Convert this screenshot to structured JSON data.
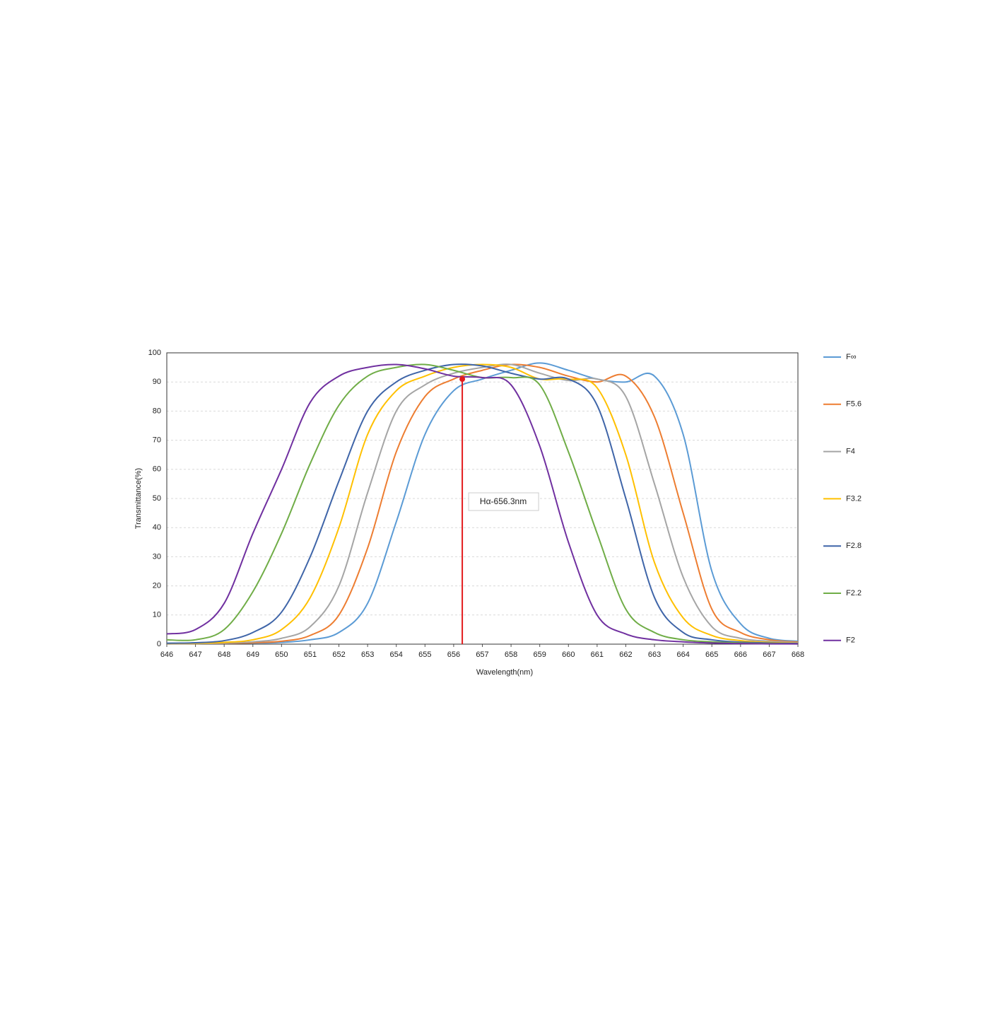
{
  "chart_data": {
    "type": "line",
    "xlabel": "Wavelength(nm)",
    "ylabel": "Transmittance(%)",
    "x": [
      646,
      647,
      648,
      649,
      650,
      651,
      652,
      653,
      654,
      655,
      656,
      657,
      658,
      659,
      660,
      661,
      662,
      663,
      664,
      665,
      666,
      667,
      668
    ],
    "xlim": [
      646,
      668
    ],
    "xticks": [
      646,
      647,
      648,
      649,
      650,
      651,
      652,
      653,
      654,
      655,
      656,
      657,
      658,
      659,
      660,
      661,
      662,
      663,
      664,
      665,
      666,
      667,
      668
    ],
    "ylim": [
      0,
      100
    ],
    "yticks": [
      0,
      10,
      20,
      30,
      40,
      50,
      60,
      70,
      80,
      90,
      100
    ],
    "grid": true,
    "legend": "right",
    "series": [
      {
        "name": "F∞",
        "color": "#5b9bd5",
        "values": [
          0.3,
          0.3,
          0.3,
          0.4,
          0.6,
          1.5,
          4,
          14,
          42,
          72,
          87,
          91,
          94,
          96.5,
          94,
          91,
          90,
          92,
          72,
          25,
          7,
          2,
          1
        ]
      },
      {
        "name": "F5.6",
        "color": "#ed7d31",
        "values": [
          0.2,
          0.2,
          0.3,
          0.5,
          1,
          3,
          10,
          33,
          66,
          85,
          91,
          94,
          96,
          95,
          92,
          90,
          92,
          78,
          45,
          12,
          4,
          1.5,
          0.7
        ]
      },
      {
        "name": "F4",
        "color": "#a5a5a5",
        "values": [
          0.2,
          0.2,
          0.4,
          0.8,
          2,
          6,
          20,
          52,
          80,
          89,
          93,
          95,
          96,
          93,
          90.5,
          91,
          85,
          55,
          23,
          6,
          2,
          1,
          0.5
        ]
      },
      {
        "name": "F3.2",
        "color": "#ffc000",
        "values": [
          0.2,
          0.3,
          0.6,
          1.5,
          5,
          16,
          40,
          72,
          87,
          92,
          95,
          96,
          95,
          91,
          91,
          88,
          65,
          28,
          9,
          3,
          1.2,
          0.6,
          0.3
        ]
      },
      {
        "name": "F2.8",
        "color": "#3f65a8",
        "values": [
          0.3,
          0.5,
          1.2,
          4,
          11,
          30,
          56,
          80,
          90,
          94,
          96,
          95.5,
          93,
          91,
          91,
          82,
          50,
          16,
          4,
          1.5,
          0.7,
          0.4,
          0.2
        ]
      },
      {
        "name": "F2.2",
        "color": "#70ad47",
        "values": [
          1.5,
          1.5,
          5,
          18,
          38,
          62,
          82,
          92,
          95,
          96,
          94,
          91.5,
          91.5,
          89,
          66,
          38,
          12,
          4,
          1.5,
          0.8,
          0.4,
          0.2,
          0.1
        ]
      },
      {
        "name": "F2",
        "color": "#7030a0",
        "values": [
          3.5,
          5,
          14,
          38,
          60,
          83,
          92,
          95,
          96,
          94.5,
          92,
          91.5,
          89,
          68,
          35,
          10,
          3.5,
          1.5,
          0.8,
          0.4,
          0.2,
          0.1,
          0.1
        ]
      }
    ],
    "marker": {
      "x": 656.3,
      "y": 91,
      "label": "Hα-656.3nm",
      "color": "#e31a1c"
    }
  }
}
